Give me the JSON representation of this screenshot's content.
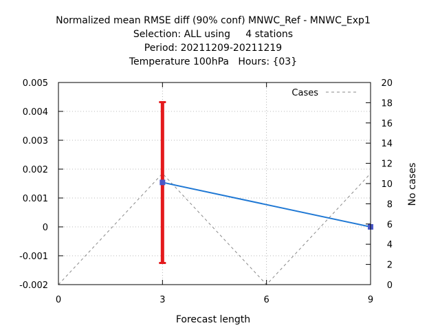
{
  "chart_data": {
    "type": "line",
    "title_lines": [
      "Normalized mean RMSE diff (90% conf) MNWC_Ref - MNWC_Exp1",
      "Selection: ALL using     4 stations",
      "Period: 20211209-20211219",
      "Temperature 100hPa   Hours: {03}"
    ],
    "xlabel": "Forecast length",
    "ylabel": "",
    "y2label": "No cases",
    "xlim": [
      0,
      9
    ],
    "ylim": [
      -0.002,
      0.005
    ],
    "y2lim": [
      0,
      20
    ],
    "x_ticks": [
      "0",
      "3",
      "6",
      "9"
    ],
    "y_ticks": [
      "0.005",
      "0.004",
      "0.003",
      "0.002",
      "0.001",
      "0",
      "-0.001",
      "-0.002"
    ],
    "y2_ticks": [
      "20",
      "18",
      "16",
      "14",
      "12",
      "10",
      "8",
      "6",
      "4",
      "2",
      "0"
    ],
    "grid": true,
    "legend_position": "top-right",
    "series": [
      {
        "kind": "line",
        "color": "#1f78d4",
        "x": [
          3,
          9
        ],
        "y": [
          0.00154,
          0.0
        ]
      },
      {
        "kind": "errorbar",
        "color": "#e41a1c",
        "x": 3,
        "low": -0.00125,
        "high": 0.00432
      },
      {
        "name": "Cases",
        "kind": "dashed",
        "axis": "y2",
        "color": "#888888",
        "x": [
          0,
          3,
          6,
          9
        ],
        "y": [
          0,
          11,
          0,
          11
        ]
      }
    ]
  }
}
